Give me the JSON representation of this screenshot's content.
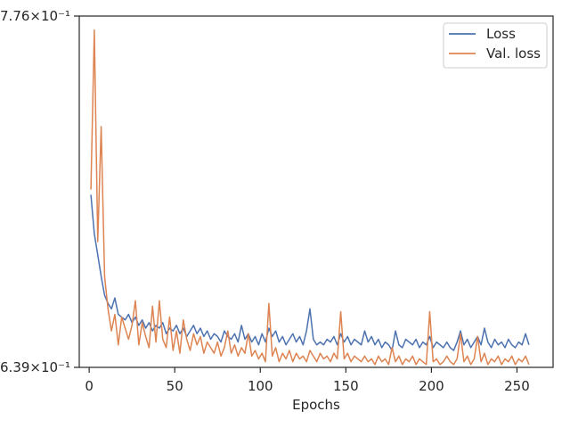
{
  "chart_data": {
    "type": "line",
    "title": "",
    "xlabel": "Epochs",
    "ylabel": "",
    "xlim": [
      -5.8,
      271.1
    ],
    "ylim": [
      0.639,
      0.776
    ],
    "yscale": "log",
    "grid": false,
    "legend_position": "top-right",
    "x_ticks": [
      0,
      50,
      100,
      150,
      200,
      250
    ],
    "x_tick_labels": [
      "0",
      "50",
      "100",
      "150",
      "200",
      "250"
    ],
    "y_tick_values": [
      0.776,
      0.639
    ],
    "y_tick_labels": [
      "7.76×10⁻¹",
      "6.39×10⁻¹"
    ],
    "x": [
      1,
      3,
      5,
      7,
      9,
      11,
      13,
      15,
      17,
      19,
      21,
      23,
      25,
      27,
      29,
      31,
      33,
      35,
      37,
      39,
      41,
      43,
      45,
      47,
      49,
      51,
      53,
      55,
      57,
      59,
      61,
      63,
      65,
      67,
      69,
      71,
      73,
      75,
      77,
      79,
      81,
      83,
      85,
      87,
      89,
      91,
      93,
      95,
      97,
      99,
      101,
      103,
      105,
      107,
      109,
      111,
      113,
      115,
      117,
      119,
      121,
      123,
      125,
      127,
      129,
      131,
      133,
      135,
      137,
      139,
      141,
      143,
      145,
      147,
      149,
      151,
      153,
      155,
      157,
      159,
      161,
      163,
      165,
      167,
      169,
      171,
      173,
      175,
      177,
      179,
      181,
      183,
      185,
      187,
      189,
      191,
      193,
      195,
      197,
      199,
      201,
      203,
      205,
      207,
      209,
      211,
      213,
      215,
      217,
      219,
      221,
      223,
      225,
      227,
      229,
      231,
      233,
      235,
      237,
      239,
      241,
      243,
      245,
      247,
      249,
      251,
      253,
      255,
      257
    ],
    "series": [
      {
        "name": "Loss",
        "color": "#4c72b0",
        "values": [
          0.703,
          0.688,
          0.68,
          0.672,
          0.665,
          0.662,
          0.66,
          0.664,
          0.658,
          0.657,
          0.656,
          0.658,
          0.655,
          0.657,
          0.654,
          0.656,
          0.653,
          0.655,
          0.652,
          0.654,
          0.653,
          0.655,
          0.651,
          0.653,
          0.652,
          0.654,
          0.651,
          0.653,
          0.65,
          0.652,
          0.654,
          0.651,
          0.653,
          0.65,
          0.652,
          0.649,
          0.651,
          0.65,
          0.648,
          0.652,
          0.65,
          0.649,
          0.651,
          0.648,
          0.654,
          0.649,
          0.651,
          0.648,
          0.65,
          0.647,
          0.651,
          0.648,
          0.653,
          0.65,
          0.652,
          0.648,
          0.65,
          0.647,
          0.649,
          0.651,
          0.648,
          0.65,
          0.647,
          0.652,
          0.66,
          0.649,
          0.647,
          0.648,
          0.647,
          0.649,
          0.648,
          0.65,
          0.647,
          0.651,
          0.648,
          0.65,
          0.647,
          0.649,
          0.648,
          0.647,
          0.652,
          0.648,
          0.65,
          0.647,
          0.649,
          0.646,
          0.648,
          0.647,
          0.645,
          0.652,
          0.647,
          0.646,
          0.649,
          0.648,
          0.647,
          0.649,
          0.646,
          0.648,
          0.647,
          0.65,
          0.646,
          0.648,
          0.647,
          0.646,
          0.648,
          0.646,
          0.645,
          0.648,
          0.652,
          0.647,
          0.649,
          0.646,
          0.648,
          0.65,
          0.647,
          0.653,
          0.648,
          0.646,
          0.649,
          0.647,
          0.648,
          0.646,
          0.649,
          0.647,
          0.646,
          0.648,
          0.647,
          0.651,
          0.647
        ]
      },
      {
        "name": "Val. loss",
        "color": "#dd8452",
        "values": [
          0.705,
          0.77,
          0.685,
          0.73,
          0.672,
          0.66,
          0.652,
          0.658,
          0.647,
          0.657,
          0.653,
          0.649,
          0.654,
          0.663,
          0.647,
          0.655,
          0.65,
          0.646,
          0.661,
          0.648,
          0.663,
          0.649,
          0.646,
          0.657,
          0.645,
          0.652,
          0.644,
          0.656,
          0.649,
          0.645,
          0.651,
          0.647,
          0.65,
          0.644,
          0.648,
          0.646,
          0.644,
          0.648,
          0.643,
          0.646,
          0.652,
          0.644,
          0.647,
          0.643,
          0.646,
          0.644,
          0.651,
          0.643,
          0.645,
          0.642,
          0.644,
          0.641,
          0.662,
          0.643,
          0.646,
          0.641,
          0.644,
          0.642,
          0.645,
          0.641,
          0.644,
          0.642,
          0.643,
          0.641,
          0.645,
          0.643,
          0.641,
          0.644,
          0.642,
          0.643,
          0.641,
          0.644,
          0.642,
          0.659,
          0.642,
          0.644,
          0.641,
          0.643,
          0.642,
          0.641,
          0.643,
          0.641,
          0.642,
          0.64,
          0.643,
          0.641,
          0.642,
          0.64,
          0.646,
          0.641,
          0.643,
          0.64,
          0.642,
          0.641,
          0.643,
          0.64,
          0.642,
          0.641,
          0.64,
          0.659,
          0.641,
          0.642,
          0.64,
          0.641,
          0.643,
          0.641,
          0.64,
          0.642,
          0.651,
          0.641,
          0.643,
          0.64,
          0.642,
          0.65,
          0.641,
          0.644,
          0.64,
          0.642,
          0.641,
          0.643,
          0.64,
          0.642,
          0.641,
          0.643,
          0.64,
          0.642,
          0.641,
          0.643,
          0.64
        ]
      }
    ]
  }
}
